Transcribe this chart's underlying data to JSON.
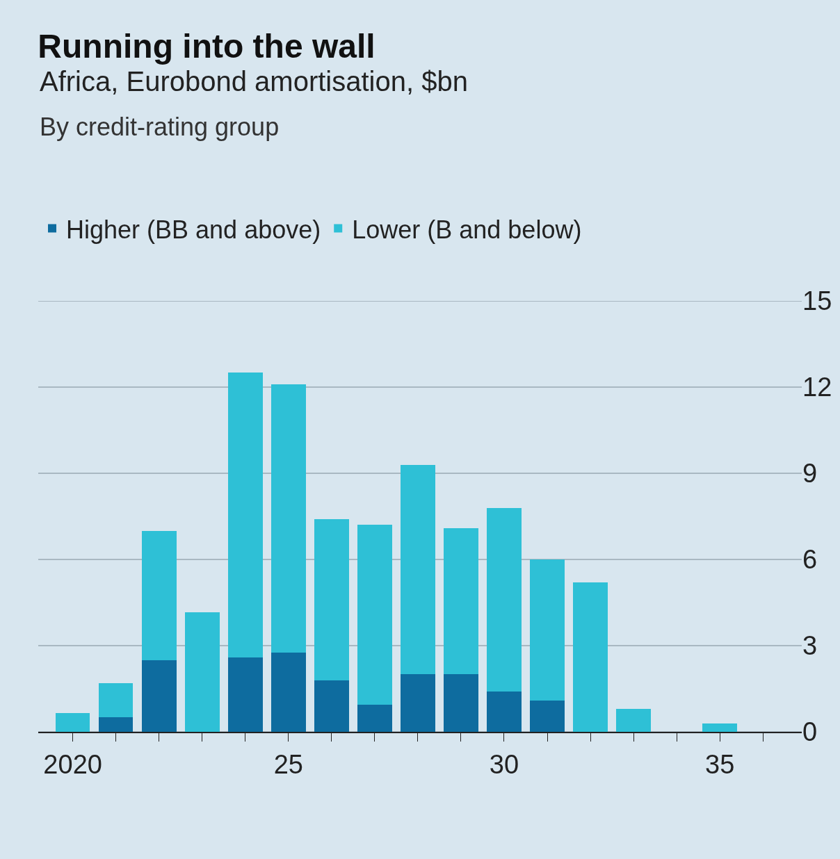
{
  "chart_data": {
    "type": "bar",
    "title": "Running into the wall",
    "subtitle": "Africa, Eurobond amortisation, $bn\nBy credit-rating group",
    "x": [
      2020,
      2021,
      2022,
      2023,
      2024,
      2025,
      2026,
      2027,
      2028,
      2029,
      2030,
      2031,
      2032,
      2033,
      2034,
      2035
    ],
    "stacked": true,
    "series": [
      {
        "name": "Higher (BB and above)",
        "color": "#0e6c9f",
        "values": [
          0,
          0.5,
          2.5,
          0,
          2.6,
          2.75,
          1.8,
          0.95,
          2.0,
          2.0,
          1.4,
          1.1,
          0,
          0,
          0,
          0
        ]
      },
      {
        "name": "Lower (B and below)",
        "color": "#2ec0d6",
        "values": [
          0.65,
          1.2,
          4.5,
          4.15,
          9.9,
          9.35,
          5.6,
          6.25,
          7.3,
          5.1,
          6.4,
          4.9,
          5.2,
          0.8,
          0,
          0.3
        ]
      }
    ],
    "xlim": [
      2019.2,
      2036.9
    ],
    "xticks": [
      {
        "value": 2020,
        "label": "2020"
      },
      {
        "value": 2021,
        "label": null
      },
      {
        "value": 2022,
        "label": null
      },
      {
        "value": 2023,
        "label": null
      },
      {
        "value": 2024,
        "label": null
      },
      {
        "value": 2025,
        "label": "25"
      },
      {
        "value": 2026,
        "label": null
      },
      {
        "value": 2027,
        "label": null
      },
      {
        "value": 2028,
        "label": null
      },
      {
        "value": 2029,
        "label": null
      },
      {
        "value": 2030,
        "label": "30"
      },
      {
        "value": 2031,
        "label": null
      },
      {
        "value": 2032,
        "label": null
      },
      {
        "value": 2033,
        "label": null
      },
      {
        "value": 2034,
        "label": null
      },
      {
        "value": 2035,
        "label": "35"
      },
      {
        "value": 2036,
        "label": null
      }
    ],
    "ylim": [
      0,
      15
    ],
    "yticks": [
      0,
      3,
      6,
      9,
      12,
      15
    ],
    "grid": "y",
    "legend": "top left"
  }
}
